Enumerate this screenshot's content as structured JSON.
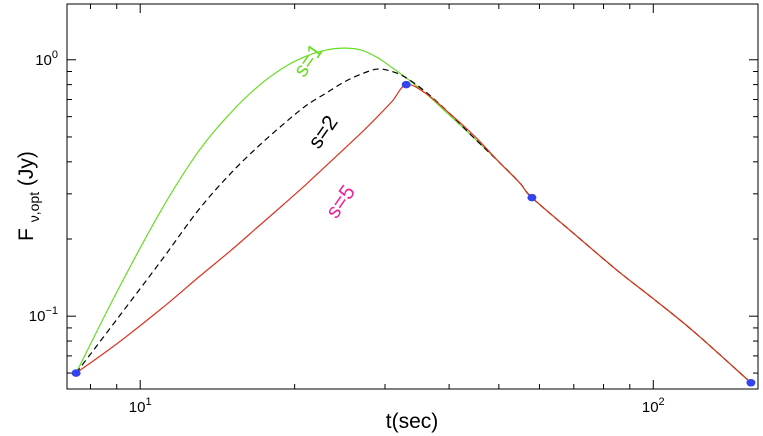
{
  "chart_data": {
    "type": "line",
    "xscale": "log",
    "yscale": "log",
    "xlim": [
      7.2,
      160
    ],
    "ylim": [
      0.052,
      1.65
    ],
    "xlabel": "t(sec)",
    "ylabel": "F",
    "ylabel_subscript": "ν,opt",
    "ylabel_suffix": "(Jy)",
    "grid": false,
    "x_ticks": [
      {
        "value": 10,
        "base": "10",
        "exp": "1"
      },
      {
        "value": 100,
        "base": "10",
        "exp": "2"
      }
    ],
    "y_ticks": [
      {
        "value": 0.1,
        "base": "10",
        "exp": "−1"
      },
      {
        "value": 1.0,
        "base": "10",
        "exp": "0"
      }
    ],
    "series": [
      {
        "name": "s=1",
        "color": "#66dd22",
        "dash": "solid",
        "x": [
          7.5,
          9,
          11,
          13,
          15,
          17,
          19,
          21,
          23,
          25,
          27,
          29,
          31,
          33,
          36,
          40,
          45,
          50,
          55,
          58,
          70,
          85,
          100,
          120,
          155
        ],
        "y": [
          0.06,
          0.124,
          0.26,
          0.44,
          0.62,
          0.79,
          0.93,
          1.03,
          1.09,
          1.11,
          1.09,
          1.02,
          0.93,
          0.85,
          0.74,
          0.61,
          0.49,
          0.4,
          0.33,
          0.29,
          0.21,
          0.151,
          0.117,
          0.087,
          0.055
        ]
      },
      {
        "name": "s=2",
        "color": "#000000",
        "dash": "dashed",
        "x": [
          7.5,
          9,
          11,
          13,
          15,
          17,
          19,
          21,
          23,
          25,
          27,
          29,
          31,
          33,
          36,
          40,
          45,
          50,
          55,
          58,
          70,
          85,
          100,
          120,
          155
        ],
        "y": [
          0.06,
          0.097,
          0.165,
          0.26,
          0.36,
          0.46,
          0.56,
          0.66,
          0.74,
          0.82,
          0.88,
          0.92,
          0.9,
          0.85,
          0.75,
          0.62,
          0.49,
          0.4,
          0.33,
          0.29,
          0.21,
          0.151,
          0.117,
          0.087,
          0.055
        ]
      },
      {
        "name": "s=5",
        "color": "#dd3322",
        "dash": "solid",
        "x": [
          7.5,
          9,
          11,
          13,
          15,
          17,
          19,
          21,
          23,
          25,
          27,
          29,
          31,
          33,
          36,
          40,
          45,
          50,
          55,
          58,
          70,
          85,
          100,
          120,
          155
        ],
        "y": [
          0.06,
          0.078,
          0.107,
          0.142,
          0.18,
          0.224,
          0.272,
          0.325,
          0.385,
          0.45,
          0.52,
          0.6,
          0.69,
          0.8,
          0.74,
          0.62,
          0.5,
          0.4,
          0.33,
          0.29,
          0.21,
          0.151,
          0.117,
          0.087,
          0.055
        ]
      }
    ],
    "markers": {
      "color": "#3344ee",
      "x": [
        7.5,
        33,
        58,
        155
      ],
      "y": [
        0.06,
        0.8,
        0.29,
        0.055
      ]
    },
    "annotations": [
      {
        "text": "s=1",
        "color": "#66dd22",
        "x": 21.8,
        "y": 0.96,
        "angle": -55
      },
      {
        "text": "s=2",
        "color": "#000000",
        "x": 23.3,
        "y": 0.505,
        "angle": -55
      },
      {
        "text": "s=5",
        "color": "#ee2299",
        "x": 25.2,
        "y": 0.27,
        "angle": -55
      }
    ]
  }
}
